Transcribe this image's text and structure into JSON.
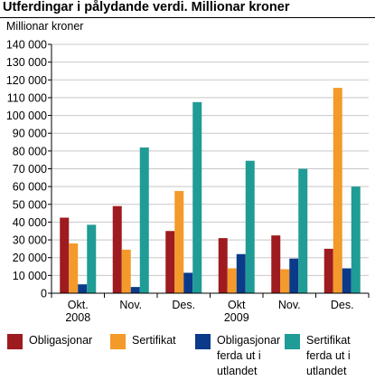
{
  "header": {
    "title": "Utferdingar i pålydande verdi. Millionar kroner"
  },
  "colors": {
    "obligasjonar": "#9e1b1f",
    "sertifikat": "#f39a2b",
    "obligasjonar_utland": "#0b3a8a",
    "sertifikat_utland": "#1f9c95",
    "grid": "#c8c8c8",
    "axis": "#000000"
  },
  "chart_data": {
    "type": "bar",
    "title": "Utferdingar i pålydande verdi. Millionar kroner",
    "ylabel": "Millionar kroner",
    "xlabel": "",
    "ylim": [
      0,
      140000
    ],
    "yticks": [
      0,
      10000,
      20000,
      30000,
      40000,
      50000,
      60000,
      70000,
      80000,
      90000,
      100000,
      110000,
      120000,
      130000,
      140000
    ],
    "ytick_labels": [
      "0",
      "10 000",
      "20 000",
      "30 000",
      "40 000",
      "50 000",
      "60 000",
      "70 000",
      "80 000",
      "90 000",
      "100 000",
      "110 000",
      "120 000",
      "130 000",
      "140 000"
    ],
    "grid": true,
    "legend_position": "bottom",
    "categories": [
      [
        "Okt.",
        "2008"
      ],
      [
        "Nov."
      ],
      [
        "Des."
      ],
      [
        "Okt",
        "2009"
      ],
      [
        "Nov."
      ],
      [
        "Des."
      ]
    ],
    "series": [
      {
        "name": "Obligasjonar",
        "label_lines": [
          "Obligasjonar"
        ],
        "color": "#9e1b1f",
        "values": [
          42500,
          49000,
          35000,
          31000,
          32500,
          25000
        ]
      },
      {
        "name": "Sertifikat",
        "label_lines": [
          "Sertifikat"
        ],
        "color": "#f39a2b",
        "values": [
          28000,
          24500,
          57500,
          14000,
          13500,
          115500
        ]
      },
      {
        "name": "Obligasjonar ferda ut i utlandet",
        "label_lines": [
          "Obligasjonar",
          "ferda ut i",
          "utlandet"
        ],
        "color": "#0b3a8a",
        "values": [
          5000,
          3500,
          11500,
          22000,
          19500,
          14000
        ]
      },
      {
        "name": "Sertifikat ferda ut i utlandet",
        "label_lines": [
          "Sertifikat",
          "ferda ut i",
          "utlandet"
        ],
        "color": "#1f9c95",
        "values": [
          38500,
          82000,
          107500,
          74500,
          70000,
          60000
        ]
      }
    ]
  }
}
